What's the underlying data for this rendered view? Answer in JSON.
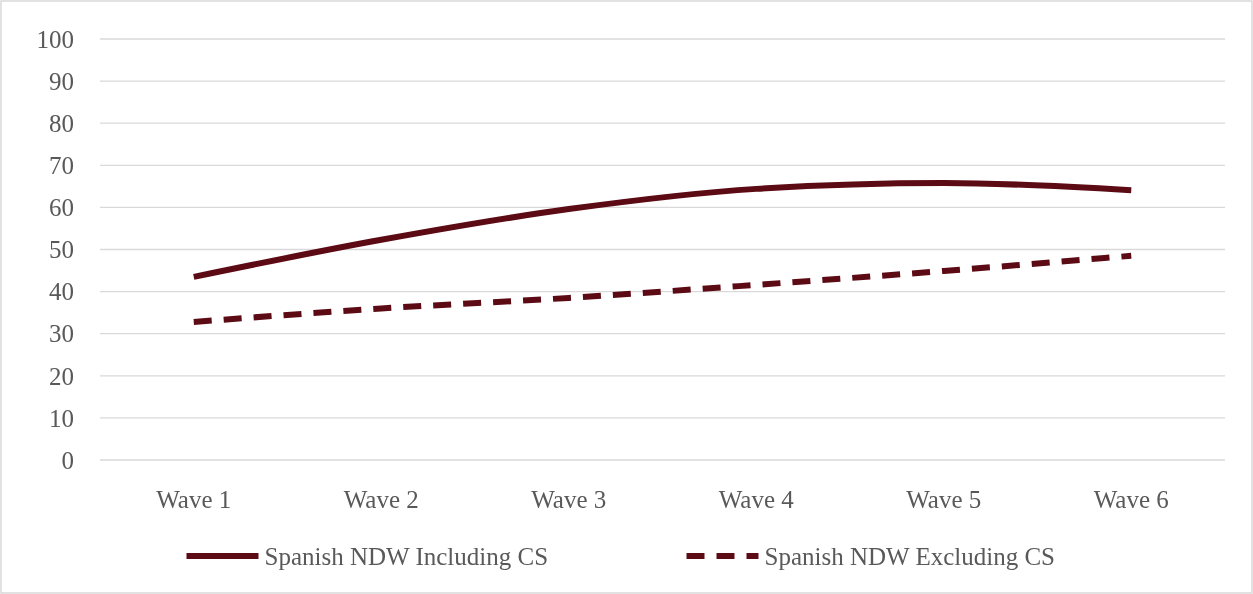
{
  "chart_data": {
    "type": "line",
    "categories": [
      "Wave 1",
      "Wave 2",
      "Wave 3",
      "Wave 4",
      "Wave 5",
      "Wave 6"
    ],
    "series": [
      {
        "name": "Spanish NDW Including CS",
        "color": "#5c0a14",
        "line_style": "solid",
        "values": [
          43.5,
          52.3,
          59.6,
          64.4,
          65.8,
          64.1
        ]
      },
      {
        "name": "Spanish NDW Excluding CS",
        "color": "#5c0a14",
        "line_style": "dashed",
        "values": [
          32.8,
          36,
          38.5,
          41.6,
          44.9,
          48.5
        ]
      }
    ],
    "ylim": [
      0,
      100
    ],
    "yticks": [
      0,
      10,
      20,
      30,
      40,
      50,
      60,
      70,
      80,
      90,
      100
    ],
    "grid": "y",
    "legend": "bottom",
    "marker": "none"
  }
}
